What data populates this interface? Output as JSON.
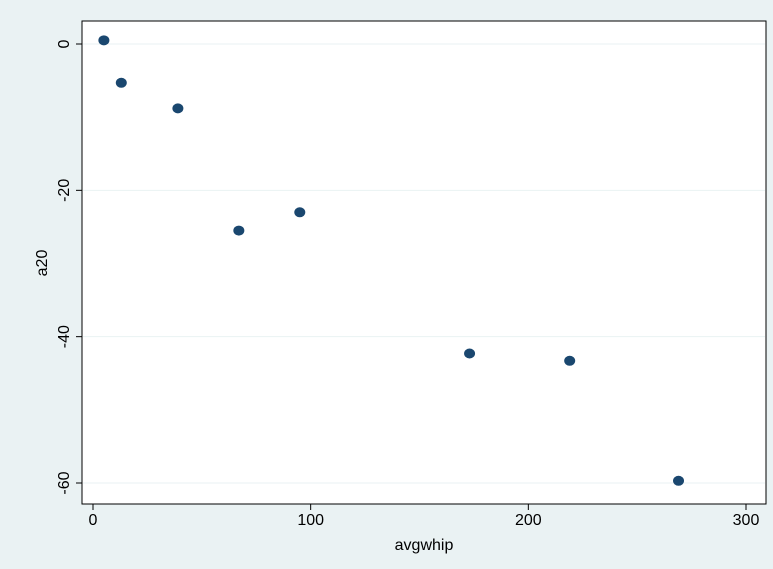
{
  "chart_data": {
    "type": "scatter",
    "title": "",
    "xlabel": "avgwhip",
    "ylabel": "a20",
    "xlim": [
      0,
      300
    ],
    "ylim": [
      -60,
      0
    ],
    "xticks": [
      0,
      100,
      200,
      300
    ],
    "yticks": [
      0,
      -20,
      -40,
      -60
    ],
    "grid": "horizontal",
    "colors": {
      "background": "#eaf2f3",
      "plot_background": "#ffffff",
      "marker": "#1a476f",
      "grid": "#eaf2f3"
    },
    "points": [
      {
        "x": 5,
        "y": 0.5
      },
      {
        "x": 13,
        "y": -5.3
      },
      {
        "x": 39,
        "y": -8.8
      },
      {
        "x": 67,
        "y": -25.5
      },
      {
        "x": 95,
        "y": -23.0
      },
      {
        "x": 173,
        "y": -42.3
      },
      {
        "x": 219,
        "y": -43.3
      },
      {
        "x": 269,
        "y": -59.7
      }
    ]
  }
}
